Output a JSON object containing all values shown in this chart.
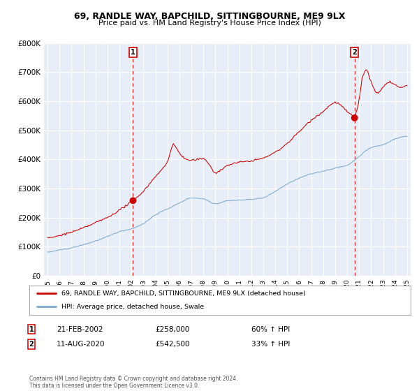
{
  "title": "69, RANDLE WAY, BAPCHILD, SITTINGBOURNE, ME9 9LX",
  "subtitle": "Price paid vs. HM Land Registry's House Price Index (HPI)",
  "legend_red": "69, RANDLE WAY, BAPCHILD, SITTINGBOURNE, ME9 9LX (detached house)",
  "legend_blue": "HPI: Average price, detached house, Swale",
  "annotation1_label": "1",
  "annotation1_date": "21-FEB-2002",
  "annotation1_price": "£258,000",
  "annotation1_pct": "60% ↑ HPI",
  "annotation2_label": "2",
  "annotation2_date": "11-AUG-2020",
  "annotation2_price": "£542,500",
  "annotation2_pct": "33% ↑ HPI",
  "footnote": "Contains HM Land Registry data © Crown copyright and database right 2024.\nThis data is licensed under the Open Government Licence v3.0.",
  "red_color": "#cc0000",
  "blue_color": "#7aaad0",
  "bg_color": "#e8eef8",
  "grid_color": "#ffffff",
  "annotation_dot_color": "#cc0000",
  "dashed_line_color": "#cc0000",
  "ylim": [
    0,
    800000
  ],
  "yticks": [
    0,
    100000,
    200000,
    300000,
    400000,
    500000,
    600000,
    700000,
    800000
  ],
  "ytick_labels": [
    "£0",
    "£100K",
    "£200K",
    "£300K",
    "£400K",
    "£500K",
    "£600K",
    "£700K",
    "£800K"
  ],
  "sale1_year": 2002.13,
  "sale1_value": 258000,
  "sale2_year": 2020.62,
  "sale2_value": 542500,
  "x_start_year": 1995,
  "x_end_year": 2025,
  "hpi_keypoints": [
    [
      1995.0,
      80000
    ],
    [
      1996.0,
      88000
    ],
    [
      1997.0,
      96000
    ],
    [
      1998.0,
      107000
    ],
    [
      1999.0,
      120000
    ],
    [
      2000.0,
      135000
    ],
    [
      2001.0,
      152000
    ],
    [
      2002.0,
      162000
    ],
    [
      2003.0,
      180000
    ],
    [
      2004.0,
      210000
    ],
    [
      2005.0,
      230000
    ],
    [
      2006.0,
      250000
    ],
    [
      2007.0,
      268000
    ],
    [
      2008.0,
      265000
    ],
    [
      2009.0,
      248000
    ],
    [
      2010.0,
      258000
    ],
    [
      2011.0,
      260000
    ],
    [
      2012.0,
      263000
    ],
    [
      2013.0,
      268000
    ],
    [
      2014.0,
      290000
    ],
    [
      2015.0,
      315000
    ],
    [
      2016.0,
      335000
    ],
    [
      2017.0,
      350000
    ],
    [
      2018.0,
      360000
    ],
    [
      2019.0,
      370000
    ],
    [
      2020.0,
      380000
    ],
    [
      2021.0,
      410000
    ],
    [
      2022.0,
      440000
    ],
    [
      2023.0,
      450000
    ],
    [
      2024.0,
      470000
    ],
    [
      2025.0,
      480000
    ]
  ],
  "prop_keypoints": [
    [
      1995.0,
      128000
    ],
    [
      1996.0,
      138000
    ],
    [
      1997.0,
      150000
    ],
    [
      1998.0,
      165000
    ],
    [
      1999.0,
      182000
    ],
    [
      2000.0,
      200000
    ],
    [
      2001.0,
      225000
    ],
    [
      2002.13,
      258000
    ],
    [
      2003.0,
      290000
    ],
    [
      2004.0,
      340000
    ],
    [
      2005.0,
      390000
    ],
    [
      2005.5,
      450000
    ],
    [
      2006.0,
      420000
    ],
    [
      2006.5,
      400000
    ],
    [
      2007.0,
      395000
    ],
    [
      2008.0,
      400000
    ],
    [
      2008.5,
      380000
    ],
    [
      2009.0,
      350000
    ],
    [
      2009.5,
      360000
    ],
    [
      2010.0,
      375000
    ],
    [
      2011.0,
      385000
    ],
    [
      2012.0,
      390000
    ],
    [
      2013.0,
      400000
    ],
    [
      2014.0,
      420000
    ],
    [
      2015.0,
      450000
    ],
    [
      2016.0,
      490000
    ],
    [
      2017.0,
      530000
    ],
    [
      2018.0,
      560000
    ],
    [
      2019.0,
      590000
    ],
    [
      2020.62,
      542500
    ],
    [
      2020.8,
      560000
    ],
    [
      2021.0,
      600000
    ],
    [
      2021.3,
      680000
    ],
    [
      2021.6,
      700000
    ],
    [
      2022.0,
      660000
    ],
    [
      2022.5,
      620000
    ],
    [
      2023.0,
      640000
    ],
    [
      2023.5,
      660000
    ],
    [
      2024.0,
      650000
    ],
    [
      2024.5,
      640000
    ],
    [
      2025.0,
      650000
    ]
  ]
}
